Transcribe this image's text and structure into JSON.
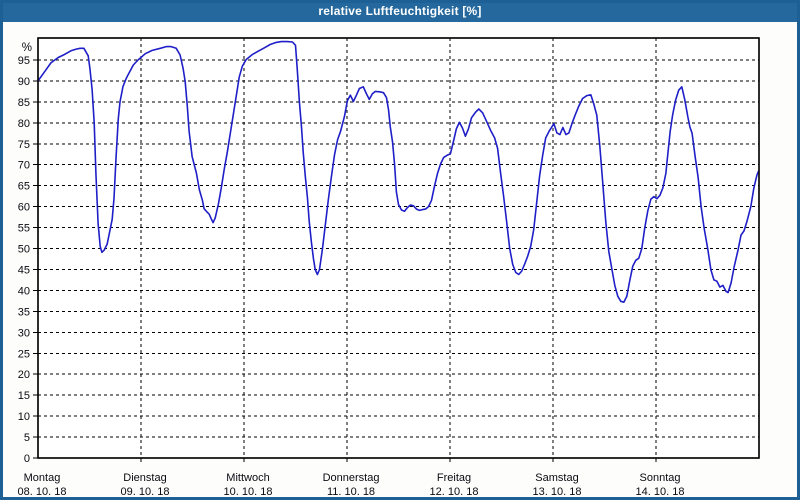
{
  "window": {
    "title": "relative Luftfeuchtigkeit [%]"
  },
  "colors": {
    "titlebar": "#24689e",
    "window_border": "#1d6096",
    "plot_background": "#ffffff",
    "grid": "#000000",
    "text": "#0a0a12",
    "line": "#1f1fc8"
  },
  "chart_data": {
    "type": "line",
    "title": "relative Luftfeuchtigkeit [%]",
    "xlabel": "",
    "ylabel": "%",
    "ylim": [
      0,
      100
    ],
    "y_ticks": [
      95,
      90,
      85,
      80,
      75,
      70,
      65,
      60,
      55,
      50,
      45,
      40,
      35,
      30,
      25,
      20,
      15,
      10,
      5,
      0
    ],
    "grid": "dashed; horizontal every 5 %, vertical at each day boundary",
    "legend_position": "none",
    "categories": [
      {
        "day": "Montag",
        "date": "08. 10. 18"
      },
      {
        "day": "Dienstag",
        "date": "09. 10. 18"
      },
      {
        "day": "Mittwoch",
        "date": "10. 10. 18"
      },
      {
        "day": "Donnerstag",
        "date": "11. 10. 18"
      },
      {
        "day": "Freitag",
        "date": "12. 10. 18"
      },
      {
        "day": "Samstag",
        "date": "13. 10. 18"
      },
      {
        "day": "Sonntag",
        "date": "14. 10. 18"
      }
    ],
    "x_unit": "hours since Montag 08.10.18 00:00",
    "x_range_hours": [
      0,
      168
    ],
    "series": [
      {
        "name": "relative Luftfeuchtigkeit",
        "color": "#1f1fc8",
        "points": [
          [
            0.0,
            90.0
          ],
          [
            1.6,
            92.3
          ],
          [
            3.0,
            94.3
          ],
          [
            4.7,
            95.6
          ],
          [
            6.1,
            96.3
          ],
          [
            7.7,
            97.2
          ],
          [
            8.9,
            97.6
          ],
          [
            9.8,
            97.8
          ],
          [
            10.7,
            97.8
          ],
          [
            11.7,
            96.0
          ],
          [
            12.1,
            93.0
          ],
          [
            12.6,
            88.0
          ],
          [
            13.1,
            80.0
          ],
          [
            13.5,
            68.0
          ],
          [
            14.0,
            56.0
          ],
          [
            14.5,
            50.5
          ],
          [
            14.9,
            49.1
          ],
          [
            15.4,
            49.6
          ],
          [
            16.1,
            51.0
          ],
          [
            16.8,
            54.5
          ],
          [
            17.3,
            57.0
          ],
          [
            17.7,
            62.0
          ],
          [
            18.2,
            72.0
          ],
          [
            18.7,
            81.0
          ],
          [
            19.1,
            85.0
          ],
          [
            19.8,
            88.7
          ],
          [
            20.5,
            90.5
          ],
          [
            21.0,
            91.5
          ],
          [
            22.2,
            93.8
          ],
          [
            23.3,
            95.0
          ],
          [
            25.0,
            96.5
          ],
          [
            26.6,
            97.3
          ],
          [
            28.5,
            97.8
          ],
          [
            29.9,
            98.2
          ],
          [
            31.0,
            98.2
          ],
          [
            32.2,
            97.8
          ],
          [
            33.1,
            96.2
          ],
          [
            33.8,
            93.0
          ],
          [
            34.3,
            89.8
          ],
          [
            34.8,
            84.0
          ],
          [
            35.2,
            78.0
          ],
          [
            35.9,
            72.0
          ],
          [
            36.9,
            68.0
          ],
          [
            37.6,
            64.0
          ],
          [
            38.3,
            61.5
          ],
          [
            38.7,
            59.5
          ],
          [
            39.4,
            58.7
          ],
          [
            39.9,
            58.2
          ],
          [
            40.4,
            57.0
          ],
          [
            40.8,
            56.2
          ],
          [
            41.3,
            57.3
          ],
          [
            42.0,
            60.5
          ],
          [
            42.7,
            64.5
          ],
          [
            43.4,
            69.0
          ],
          [
            44.1,
            73.0
          ],
          [
            44.8,
            77.5
          ],
          [
            45.5,
            82.0
          ],
          [
            46.2,
            86.5
          ],
          [
            46.9,
            91.0
          ],
          [
            47.6,
            93.5
          ],
          [
            48.5,
            95.1
          ],
          [
            49.9,
            96.3
          ],
          [
            51.3,
            97.1
          ],
          [
            52.7,
            97.9
          ],
          [
            54.1,
            98.7
          ],
          [
            55.5,
            99.2
          ],
          [
            56.7,
            99.4
          ],
          [
            58.1,
            99.4
          ],
          [
            59.3,
            99.3
          ],
          [
            60.0,
            98.5
          ],
          [
            60.4,
            93.0
          ],
          [
            60.9,
            85.0
          ],
          [
            61.4,
            79.0
          ],
          [
            61.8,
            73.0
          ],
          [
            62.3,
            67.0
          ],
          [
            62.8,
            62.0
          ],
          [
            63.2,
            56.5
          ],
          [
            63.7,
            51.5
          ],
          [
            64.2,
            47.5
          ],
          [
            64.6,
            45.0
          ],
          [
            65.1,
            43.8
          ],
          [
            65.6,
            45.0
          ],
          [
            66.3,
            50.0
          ],
          [
            67.0,
            56.0
          ],
          [
            67.7,
            62.0
          ],
          [
            68.4,
            67.5
          ],
          [
            69.1,
            72.5
          ],
          [
            69.8,
            76.0
          ],
          [
            70.5,
            78.0
          ],
          [
            71.4,
            81.5
          ],
          [
            72.1,
            85.3
          ],
          [
            72.8,
            86.6
          ],
          [
            73.5,
            85.1
          ],
          [
            74.2,
            86.6
          ],
          [
            74.9,
            88.2
          ],
          [
            75.8,
            88.6
          ],
          [
            76.5,
            87.0
          ],
          [
            77.2,
            85.6
          ],
          [
            77.9,
            86.9
          ],
          [
            78.6,
            87.5
          ],
          [
            79.6,
            87.4
          ],
          [
            80.5,
            87.2
          ],
          [
            81.2,
            86.0
          ],
          [
            81.7,
            83.0
          ],
          [
            82.1,
            79.0
          ],
          [
            82.6,
            75.5
          ],
          [
            83.1,
            70.0
          ],
          [
            83.5,
            63.5
          ],
          [
            84.0,
            60.5
          ],
          [
            84.7,
            59.2
          ],
          [
            85.4,
            58.9
          ],
          [
            86.1,
            59.8
          ],
          [
            86.8,
            60.4
          ],
          [
            87.5,
            60.2
          ],
          [
            88.2,
            59.4
          ],
          [
            88.9,
            59.1
          ],
          [
            89.6,
            59.3
          ],
          [
            90.3,
            59.4
          ],
          [
            91.0,
            60.0
          ],
          [
            91.7,
            61.5
          ],
          [
            92.4,
            65.0
          ],
          [
            93.1,
            68.0
          ],
          [
            93.8,
            70.2
          ],
          [
            94.5,
            71.7
          ],
          [
            95.4,
            72.3
          ],
          [
            96.1,
            72.6
          ],
          [
            96.8,
            75.5
          ],
          [
            97.5,
            78.6
          ],
          [
            98.2,
            80.1
          ],
          [
            98.9,
            78.8
          ],
          [
            99.6,
            76.8
          ],
          [
            100.3,
            78.6
          ],
          [
            101.0,
            81.2
          ],
          [
            102.0,
            82.6
          ],
          [
            102.7,
            83.3
          ],
          [
            103.6,
            82.4
          ],
          [
            104.5,
            80.4
          ],
          [
            105.5,
            78.1
          ],
          [
            106.4,
            76.4
          ],
          [
            107.1,
            73.9
          ],
          [
            107.8,
            68.0
          ],
          [
            108.5,
            62.5
          ],
          [
            109.2,
            56.5
          ],
          [
            109.9,
            50.0
          ],
          [
            110.6,
            46.2
          ],
          [
            111.3,
            44.3
          ],
          [
            112.0,
            43.8
          ],
          [
            112.7,
            44.6
          ],
          [
            113.4,
            46.3
          ],
          [
            114.1,
            48.2
          ],
          [
            114.8,
            50.5
          ],
          [
            115.5,
            54.5
          ],
          [
            116.2,
            61.0
          ],
          [
            116.9,
            67.5
          ],
          [
            117.6,
            72.3
          ],
          [
            118.3,
            76.4
          ],
          [
            119.2,
            78.2
          ],
          [
            120.2,
            79.8
          ],
          [
            120.9,
            77.6
          ],
          [
            121.6,
            77.2
          ],
          [
            122.3,
            78.9
          ],
          [
            123.0,
            77.2
          ],
          [
            123.7,
            77.6
          ],
          [
            124.4,
            79.8
          ],
          [
            125.1,
            81.7
          ],
          [
            126.0,
            84.0
          ],
          [
            126.9,
            85.8
          ],
          [
            127.9,
            86.5
          ],
          [
            128.8,
            86.7
          ],
          [
            129.5,
            84.5
          ],
          [
            130.2,
            81.8
          ],
          [
            130.9,
            74.5
          ],
          [
            131.6,
            65.5
          ],
          [
            132.3,
            56.3
          ],
          [
            133.0,
            49.3
          ],
          [
            133.7,
            45.2
          ],
          [
            134.4,
            41.2
          ],
          [
            135.1,
            38.6
          ],
          [
            135.8,
            37.4
          ],
          [
            136.5,
            37.2
          ],
          [
            137.2,
            38.6
          ],
          [
            137.9,
            42.4
          ],
          [
            138.6,
            45.8
          ],
          [
            139.3,
            47.2
          ],
          [
            140.0,
            47.7
          ],
          [
            140.7,
            50.0
          ],
          [
            141.4,
            55.0
          ],
          [
            142.1,
            59.0
          ],
          [
            142.8,
            61.8
          ],
          [
            143.5,
            62.4
          ],
          [
            144.2,
            61.9
          ],
          [
            144.9,
            62.7
          ],
          [
            145.6,
            64.5
          ],
          [
            146.3,
            68.0
          ],
          [
            146.8,
            73.0
          ],
          [
            147.3,
            78.0
          ],
          [
            147.9,
            82.0
          ],
          [
            148.6,
            85.5
          ],
          [
            149.3,
            87.8
          ],
          [
            150.0,
            88.6
          ],
          [
            150.7,
            85.5
          ],
          [
            151.4,
            81.5
          ],
          [
            151.9,
            79.0
          ],
          [
            152.4,
            77.5
          ],
          [
            153.1,
            72.0
          ],
          [
            153.8,
            67.0
          ],
          [
            154.5,
            60.0
          ],
          [
            155.2,
            54.9
          ],
          [
            156.1,
            49.7
          ],
          [
            156.8,
            44.9
          ],
          [
            157.5,
            42.5
          ],
          [
            158.2,
            42.2
          ],
          [
            158.9,
            40.8
          ],
          [
            159.6,
            41.2
          ],
          [
            160.3,
            39.8
          ],
          [
            160.8,
            39.5
          ],
          [
            161.5,
            41.8
          ],
          [
            162.2,
            45.6
          ],
          [
            163.1,
            49.6
          ],
          [
            163.8,
            53.2
          ],
          [
            164.5,
            54.2
          ],
          [
            165.2,
            56.5
          ],
          [
            166.1,
            60.0
          ],
          [
            166.8,
            64.5
          ],
          [
            167.5,
            67.5
          ],
          [
            167.9,
            68.5
          ]
        ]
      }
    ]
  }
}
